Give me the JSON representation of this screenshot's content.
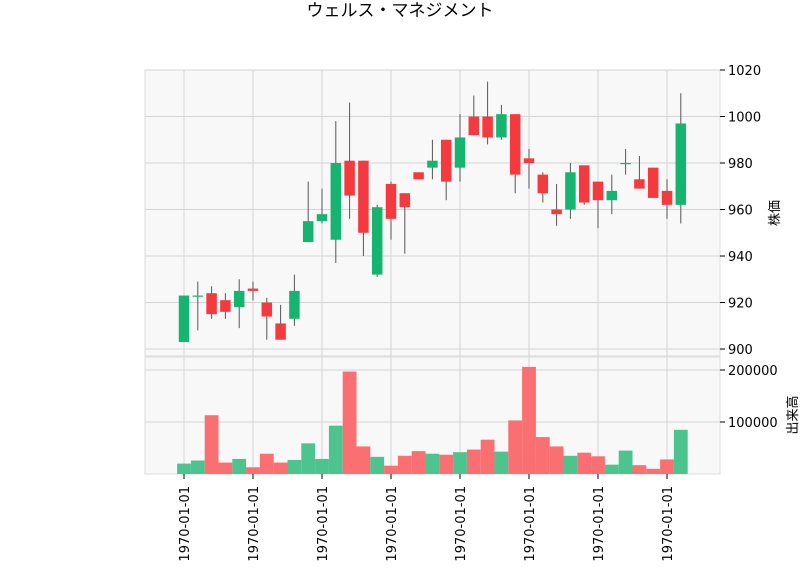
{
  "chart_data": {
    "type": "candlestick",
    "title": "ウェルス・マネジメント",
    "price_axis": {
      "label": "株価",
      "ylim": [
        897,
        1020
      ],
      "ticks": [
        900,
        920,
        940,
        960,
        980,
        1000,
        1020
      ],
      "tick_labels": [
        "900",
        "920",
        "940",
        "960",
        "980",
        "1000",
        "1020"
      ],
      "side": "right",
      "grid": true
    },
    "volume_axis": {
      "label": "出来高",
      "ylim": [
        0,
        225000
      ],
      "ticks": [
        100000,
        200000
      ],
      "tick_labels": [
        "100000",
        "200000"
      ],
      "side": "right",
      "grid": true
    },
    "x_axis": {
      "tick_label": "1970-01-01",
      "tick_positions": [
        0,
        5,
        10,
        15,
        20,
        25,
        30,
        35
      ]
    },
    "colors": {
      "up": "#16b56f",
      "down": "#f43a3f",
      "wick": "#555555",
      "up_volume": "#4dc48d",
      "down_volume": "#fa6f72",
      "grid": "#d4d4d4",
      "panel_bg": "#f8f8f8"
    },
    "candles": [
      {
        "open": 903,
        "high": 923,
        "low": 903,
        "close": 923
      },
      {
        "open": 923,
        "high": 929,
        "low": 908,
        "close": 923
      },
      {
        "open": 924,
        "high": 927,
        "low": 913,
        "close": 915
      },
      {
        "open": 921,
        "high": 924,
        "low": 913,
        "close": 916
      },
      {
        "open": 918,
        "high": 930,
        "low": 909,
        "close": 925
      },
      {
        "open": 926,
        "high": 929,
        "low": 921,
        "close": 925
      },
      {
        "open": 920,
        "high": 922,
        "low": 904,
        "close": 914
      },
      {
        "open": 911,
        "high": 919,
        "low": 904,
        "close": 904
      },
      {
        "open": 913,
        "high": 932,
        "low": 910,
        "close": 925
      },
      {
        "open": 946,
        "high": 972,
        "low": 946,
        "close": 955
      },
      {
        "open": 955,
        "high": 969,
        "low": 954,
        "close": 958
      },
      {
        "open": 947,
        "high": 998,
        "low": 937,
        "close": 980
      },
      {
        "open": 981,
        "high": 1006,
        "low": 956,
        "close": 966
      },
      {
        "open": 981,
        "high": 981,
        "low": 940,
        "close": 950
      },
      {
        "open": 932,
        "high": 962,
        "low": 931,
        "close": 961
      },
      {
        "open": 971,
        "high": 972,
        "low": 947,
        "close": 956
      },
      {
        "open": 967,
        "high": 967,
        "low": 941,
        "close": 961
      },
      {
        "open": 976,
        "high": 976,
        "low": 973,
        "close": 973
      },
      {
        "open": 978,
        "high": 990,
        "low": 973,
        "close": 981
      },
      {
        "open": 990,
        "high": 990,
        "low": 964,
        "close": 972
      },
      {
        "open": 978,
        "high": 1001,
        "low": 972,
        "close": 991
      },
      {
        "open": 1000,
        "high": 1009,
        "low": 992,
        "close": 992
      },
      {
        "open": 1000,
        "high": 1015,
        "low": 988,
        "close": 991
      },
      {
        "open": 991,
        "high": 1005,
        "low": 990,
        "close": 1001
      },
      {
        "open": 1001,
        "high": 1001,
        "low": 967,
        "close": 975
      },
      {
        "open": 982,
        "high": 986,
        "low": 969,
        "close": 980
      },
      {
        "open": 975,
        "high": 976,
        "low": 963,
        "close": 967
      },
      {
        "open": 960,
        "high": 971,
        "low": 953,
        "close": 958
      },
      {
        "open": 960,
        "high": 980,
        "low": 956,
        "close": 976
      },
      {
        "open": 979,
        "high": 979,
        "low": 962,
        "close": 963
      },
      {
        "open": 972,
        "high": 972,
        "low": 952,
        "close": 964
      },
      {
        "open": 964,
        "high": 975,
        "low": 958,
        "close": 968
      },
      {
        "open": 980,
        "high": 986,
        "low": 975,
        "close": 980
      },
      {
        "open": 973,
        "high": 983,
        "low": 969,
        "close": 969
      },
      {
        "open": 978,
        "high": 978,
        "low": 965,
        "close": 965
      },
      {
        "open": 968,
        "high": 973,
        "low": 956,
        "close": 962
      },
      {
        "open": 962,
        "high": 1010,
        "low": 954,
        "close": 997
      }
    ],
    "volumes": [
      20000,
      26000,
      113000,
      22000,
      29000,
      13000,
      39000,
      22000,
      27000,
      59000,
      29000,
      93000,
      197000,
      53000,
      33000,
      16000,
      35000,
      44000,
      39000,
      37000,
      42000,
      47000,
      66000,
      43000,
      103000,
      206000,
      71000,
      53000,
      35000,
      41000,
      34000,
      18000,
      45000,
      17000,
      10000,
      28000,
      85000
    ]
  }
}
